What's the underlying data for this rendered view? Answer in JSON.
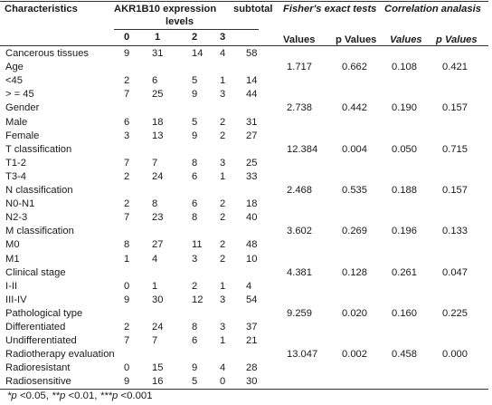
{
  "headers": {
    "characteristics": "Characteristics",
    "expression_line1": "AKR1B10 expression",
    "expression_line2": "levels",
    "subtotal": "subtotal",
    "fisher": "Fisher's exact tests",
    "correlation": "Correlation analasis",
    "level_0": "0",
    "level_1": "1",
    "level_2": "2",
    "level_3": "3",
    "fisher_values": "Values",
    "fisher_p": "p Values",
    "corr_values": "Values",
    "corr_p": "p Values"
  },
  "rows": [
    {
      "label": "Cancerous tissues",
      "c0": "9",
      "c1": "31",
      "c2": "14",
      "c3": "4",
      "sub": "58",
      "fv": "",
      "fp": "",
      "cv": "",
      "cp": ""
    },
    {
      "label": "Age",
      "c0": "",
      "c1": "",
      "c2": "",
      "c3": "",
      "sub": "",
      "fv": "1.717",
      "fp": "0.662",
      "cv": "0.108",
      "cp": "0.421"
    },
    {
      "label": "<45",
      "c0": "2",
      "c1": "6",
      "c2": "5",
      "c3": "1",
      "sub": "14",
      "fv": "",
      "fp": "",
      "cv": "",
      "cp": ""
    },
    {
      "label": "> = 45",
      "c0": "7",
      "c1": "25",
      "c2": "9",
      "c3": "3",
      "sub": "44",
      "fv": "",
      "fp": "",
      "cv": "",
      "cp": ""
    },
    {
      "label": "Gender",
      "c0": "",
      "c1": "",
      "c2": "",
      "c3": "",
      "sub": "",
      "fv": "2.738",
      "fp": "0.442",
      "cv": "0.190",
      "cp": "0.157"
    },
    {
      "label": "Male",
      "c0": "6",
      "c1": "18",
      "c2": "5",
      "c3": "2",
      "sub": "31",
      "fv": "",
      "fp": "",
      "cv": "",
      "cp": ""
    },
    {
      "label": "Female",
      "c0": "3",
      "c1": "13",
      "c2": "9",
      "c3": "2",
      "sub": "27",
      "fv": "",
      "fp": "",
      "cv": "",
      "cp": ""
    },
    {
      "label": "T classification",
      "c0": "",
      "c1": "",
      "c2": "",
      "c3": "",
      "sub": "",
      "fv": "12.384",
      "fp": "0.004",
      "cv": "0.050",
      "cp": "0.715"
    },
    {
      "label": "T1-2",
      "c0": "7",
      "c1": "7",
      "c2": "8",
      "c3": "3",
      "sub": "25",
      "fv": "",
      "fp": "",
      "cv": "",
      "cp": ""
    },
    {
      "label": "T3-4",
      "c0": "2",
      "c1": "24",
      "c2": "6",
      "c3": "1",
      "sub": "33",
      "fv": "",
      "fp": "",
      "cv": "",
      "cp": ""
    },
    {
      "label": "N classification",
      "c0": "",
      "c1": "",
      "c2": "",
      "c3": "",
      "sub": "",
      "fv": "2.468",
      "fp": "0.535",
      "cv": "0.188",
      "cp": "0.157"
    },
    {
      "label": "N0-N1",
      "c0": "2",
      "c1": "8",
      "c2": "6",
      "c3": "2",
      "sub": "18",
      "fv": "",
      "fp": "",
      "cv": "",
      "cp": ""
    },
    {
      "label": "N2-3",
      "c0": "7",
      "c1": "23",
      "c2": "8",
      "c3": "2",
      "sub": "40",
      "fv": "",
      "fp": "",
      "cv": "",
      "cp": ""
    },
    {
      "label": "M classification",
      "c0": "",
      "c1": "",
      "c2": "",
      "c3": "",
      "sub": "",
      "fv": "3.602",
      "fp": "0.269",
      "cv": "0.196",
      "cp": "0.133"
    },
    {
      "label": "M0",
      "c0": "8",
      "c1": "27",
      "c2": "11",
      "c3": "2",
      "sub": "48",
      "fv": "",
      "fp": "",
      "cv": "",
      "cp": ""
    },
    {
      "label": "M1",
      "c0": "1",
      "c1": "4",
      "c2": "3",
      "c3": "2",
      "sub": "10",
      "fv": "",
      "fp": "",
      "cv": "",
      "cp": ""
    },
    {
      "label": "Clinical stage",
      "c0": "",
      "c1": "",
      "c2": "",
      "c3": "",
      "sub": "",
      "fv": "4.381",
      "fp": "0.128",
      "cv": "0.261",
      "cp": "0.047"
    },
    {
      "label": "I-II",
      "c0": "0",
      "c1": "1",
      "c2": "2",
      "c3": "1",
      "sub": "4",
      "fv": "",
      "fp": "",
      "cv": "",
      "cp": ""
    },
    {
      "label": "III-IV",
      "c0": "9",
      "c1": "30",
      "c2": "12",
      "c3": "3",
      "sub": "54",
      "fv": "",
      "fp": "",
      "cv": "",
      "cp": ""
    },
    {
      "label": "Pathological type",
      "c0": "",
      "c1": "",
      "c2": "",
      "c3": "",
      "sub": "",
      "fv": "9.259",
      "fp": "0.020",
      "cv": "0.160",
      "cp": "0.225"
    },
    {
      "label": "Differentiated",
      "c0": "2",
      "c1": "24",
      "c2": "8",
      "c3": "3",
      "sub": "37",
      "fv": "",
      "fp": "",
      "cv": "",
      "cp": ""
    },
    {
      "label": "Undifferentiated",
      "c0": "7",
      "c1": "7",
      "c2": "6",
      "c3": "1",
      "sub": "21",
      "fv": "",
      "fp": "",
      "cv": "",
      "cp": ""
    },
    {
      "label": "Radiotherapy evaluation",
      "c0": "",
      "c1": "",
      "c2": "",
      "c3": "",
      "sub": "",
      "fv": "13.047",
      "fp": "0.002",
      "cv": "0.458",
      "cp": "0.000"
    },
    {
      "label": "Radioresistant",
      "c0": "0",
      "c1": "15",
      "c2": "9",
      "c3": "4",
      "sub": "28",
      "fv": "",
      "fp": "",
      "cv": "",
      "cp": ""
    },
    {
      "label": "Radiosensitive",
      "c0": "9",
      "c1": "16",
      "c2": "5",
      "c3": "0",
      "sub": "30",
      "fv": "",
      "fp": "",
      "cv": "",
      "cp": ""
    }
  ],
  "footnote": {
    "p1": "*p",
    "t1": " <0.05, ",
    "p2": "**p",
    "t2": " <0.01, ",
    "p3": "***p",
    "t3": " <0.001"
  }
}
